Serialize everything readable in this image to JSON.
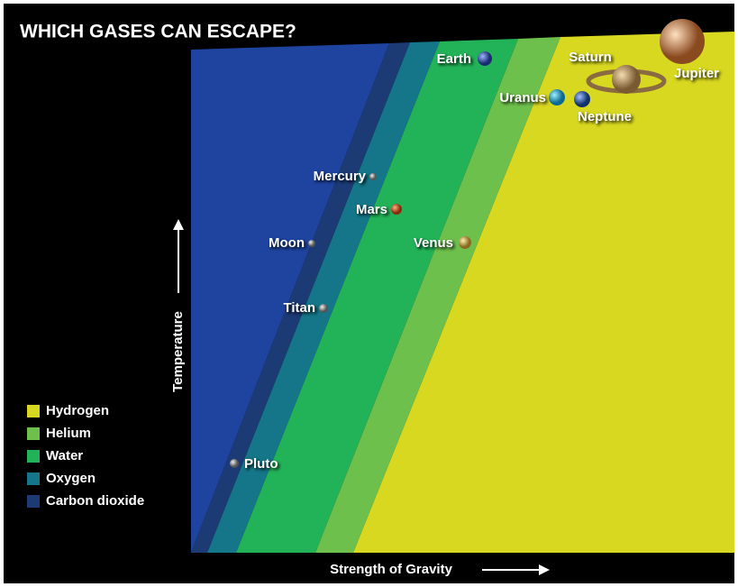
{
  "title": "WHICH GASES CAN ESCAPE?",
  "axes": {
    "y_label": "Temperature",
    "x_label": "Strength of Gravity"
  },
  "legend": [
    "Hydrogen",
    "Helium",
    "Water",
    "Oxygen",
    "Carbon dioxide"
  ],
  "bodies": [
    "Earth",
    "Saturn",
    "Jupiter",
    "Uranus",
    "Neptune",
    "Mercury",
    "Mars",
    "Moon",
    "Venus",
    "Titan",
    "Pluto"
  ]
}
